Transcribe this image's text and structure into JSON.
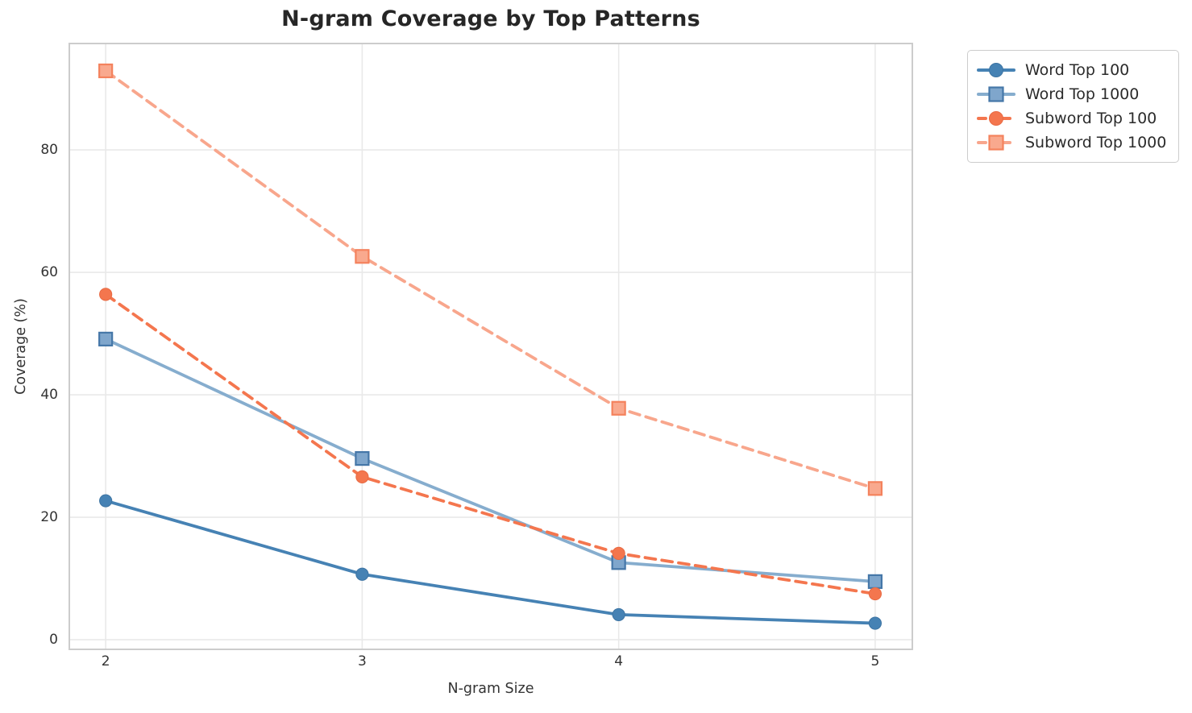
{
  "chart_data": {
    "type": "line",
    "title": "N-gram Coverage by Top Patterns",
    "xlabel": "N-gram Size",
    "ylabel": "Coverage (%)",
    "x": [
      2,
      3,
      4,
      5
    ],
    "x_tick_labels": [
      "2",
      "3",
      "4",
      "5"
    ],
    "y_tick_values": [
      0,
      20,
      40,
      60,
      80
    ],
    "y_tick_labels": [
      "0",
      "20",
      "40",
      "60",
      "80"
    ],
    "xlim": [
      1.855,
      5.148
    ],
    "ylim": [
      -1.7,
      97.5
    ],
    "grid": true,
    "legend_position": "outside-top-right",
    "axis_colors": {
      "spine": "#cccccc",
      "grid": "#e9e9e9",
      "text": "#333333",
      "title": "#262626"
    },
    "series": [
      {
        "name": "Word Top 100",
        "values": [
          22.7,
          10.7,
          4.1,
          2.7
        ],
        "color": "#4682b4",
        "marker": "circle",
        "marker_fill": "#4682b4",
        "marker_edge": "#3d74a3",
        "dashed": false
      },
      {
        "name": "Word Top 1000",
        "values": [
          49.1,
          29.6,
          12.6,
          9.5
        ],
        "color": "#86adce",
        "marker": "square",
        "marker_fill": "#7fa6cc",
        "marker_edge": "#4577a8",
        "dashed": false
      },
      {
        "name": "Subword Top 100",
        "values": [
          56.4,
          26.6,
          14.1,
          7.5
        ],
        "color": "#f4764e",
        "marker": "circle",
        "marker_fill": "#f4764e",
        "marker_edge": "#e86a43",
        "dashed": true
      },
      {
        "name": "Subword Top 1000",
        "values": [
          92.9,
          62.6,
          37.8,
          24.7
        ],
        "color": "#f8a68c",
        "marker": "square",
        "marker_fill": "#f9a98e",
        "marker_edge": "#f4825d",
        "dashed": true
      }
    ]
  }
}
